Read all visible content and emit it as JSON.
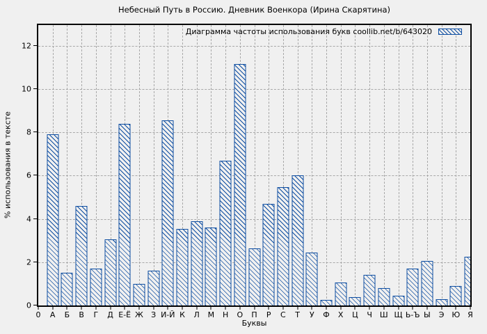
{
  "chart_data": {
    "type": "bar",
    "title": "Небесный Путь в Россию. Дневник Военкора (Ирина Скарятина)",
    "legend": "Диаграмма частоты использования букв coollib.net/b/643020",
    "legend_position": "top-right-inside",
    "xlabel": "Буквы",
    "ylabel": "% использования в тексте",
    "origin_tick_label": "0",
    "ylim": [
      0,
      12.95
    ],
    "yticks": [
      0,
      2,
      4,
      6,
      8,
      10,
      12
    ],
    "grid": true,
    "categories": [
      "А",
      "Б",
      "В",
      "Г",
      "Д",
      "Е-Ё",
      "Ж",
      "З",
      "И-Й",
      "К",
      "Л",
      "М",
      "Н",
      "О",
      "П",
      "Р",
      "С",
      "Т",
      "У",
      "Ф",
      "Х",
      "Ц",
      "Ч",
      "Ш",
      "Щ",
      "Ь-Ъ",
      "Ы",
      "Э",
      "Ю",
      "Я"
    ],
    "values": [
      7.9,
      1.5,
      4.6,
      1.7,
      3.05,
      8.4,
      1.0,
      1.6,
      8.55,
      3.55,
      3.9,
      3.6,
      6.7,
      11.15,
      2.65,
      4.7,
      5.45,
      6.0,
      2.45,
      0.25,
      1.05,
      0.4,
      1.4,
      0.8,
      0.45,
      1.7,
      2.05,
      0.3,
      0.9,
      2.25
    ],
    "colors": {
      "bar_line": "#0d4da1",
      "bar_fill_style": "diagonal-hatch",
      "background": "#f0f0f0",
      "grid": "#a8a8a8",
      "border": "#000000",
      "text": "#000000"
    }
  }
}
